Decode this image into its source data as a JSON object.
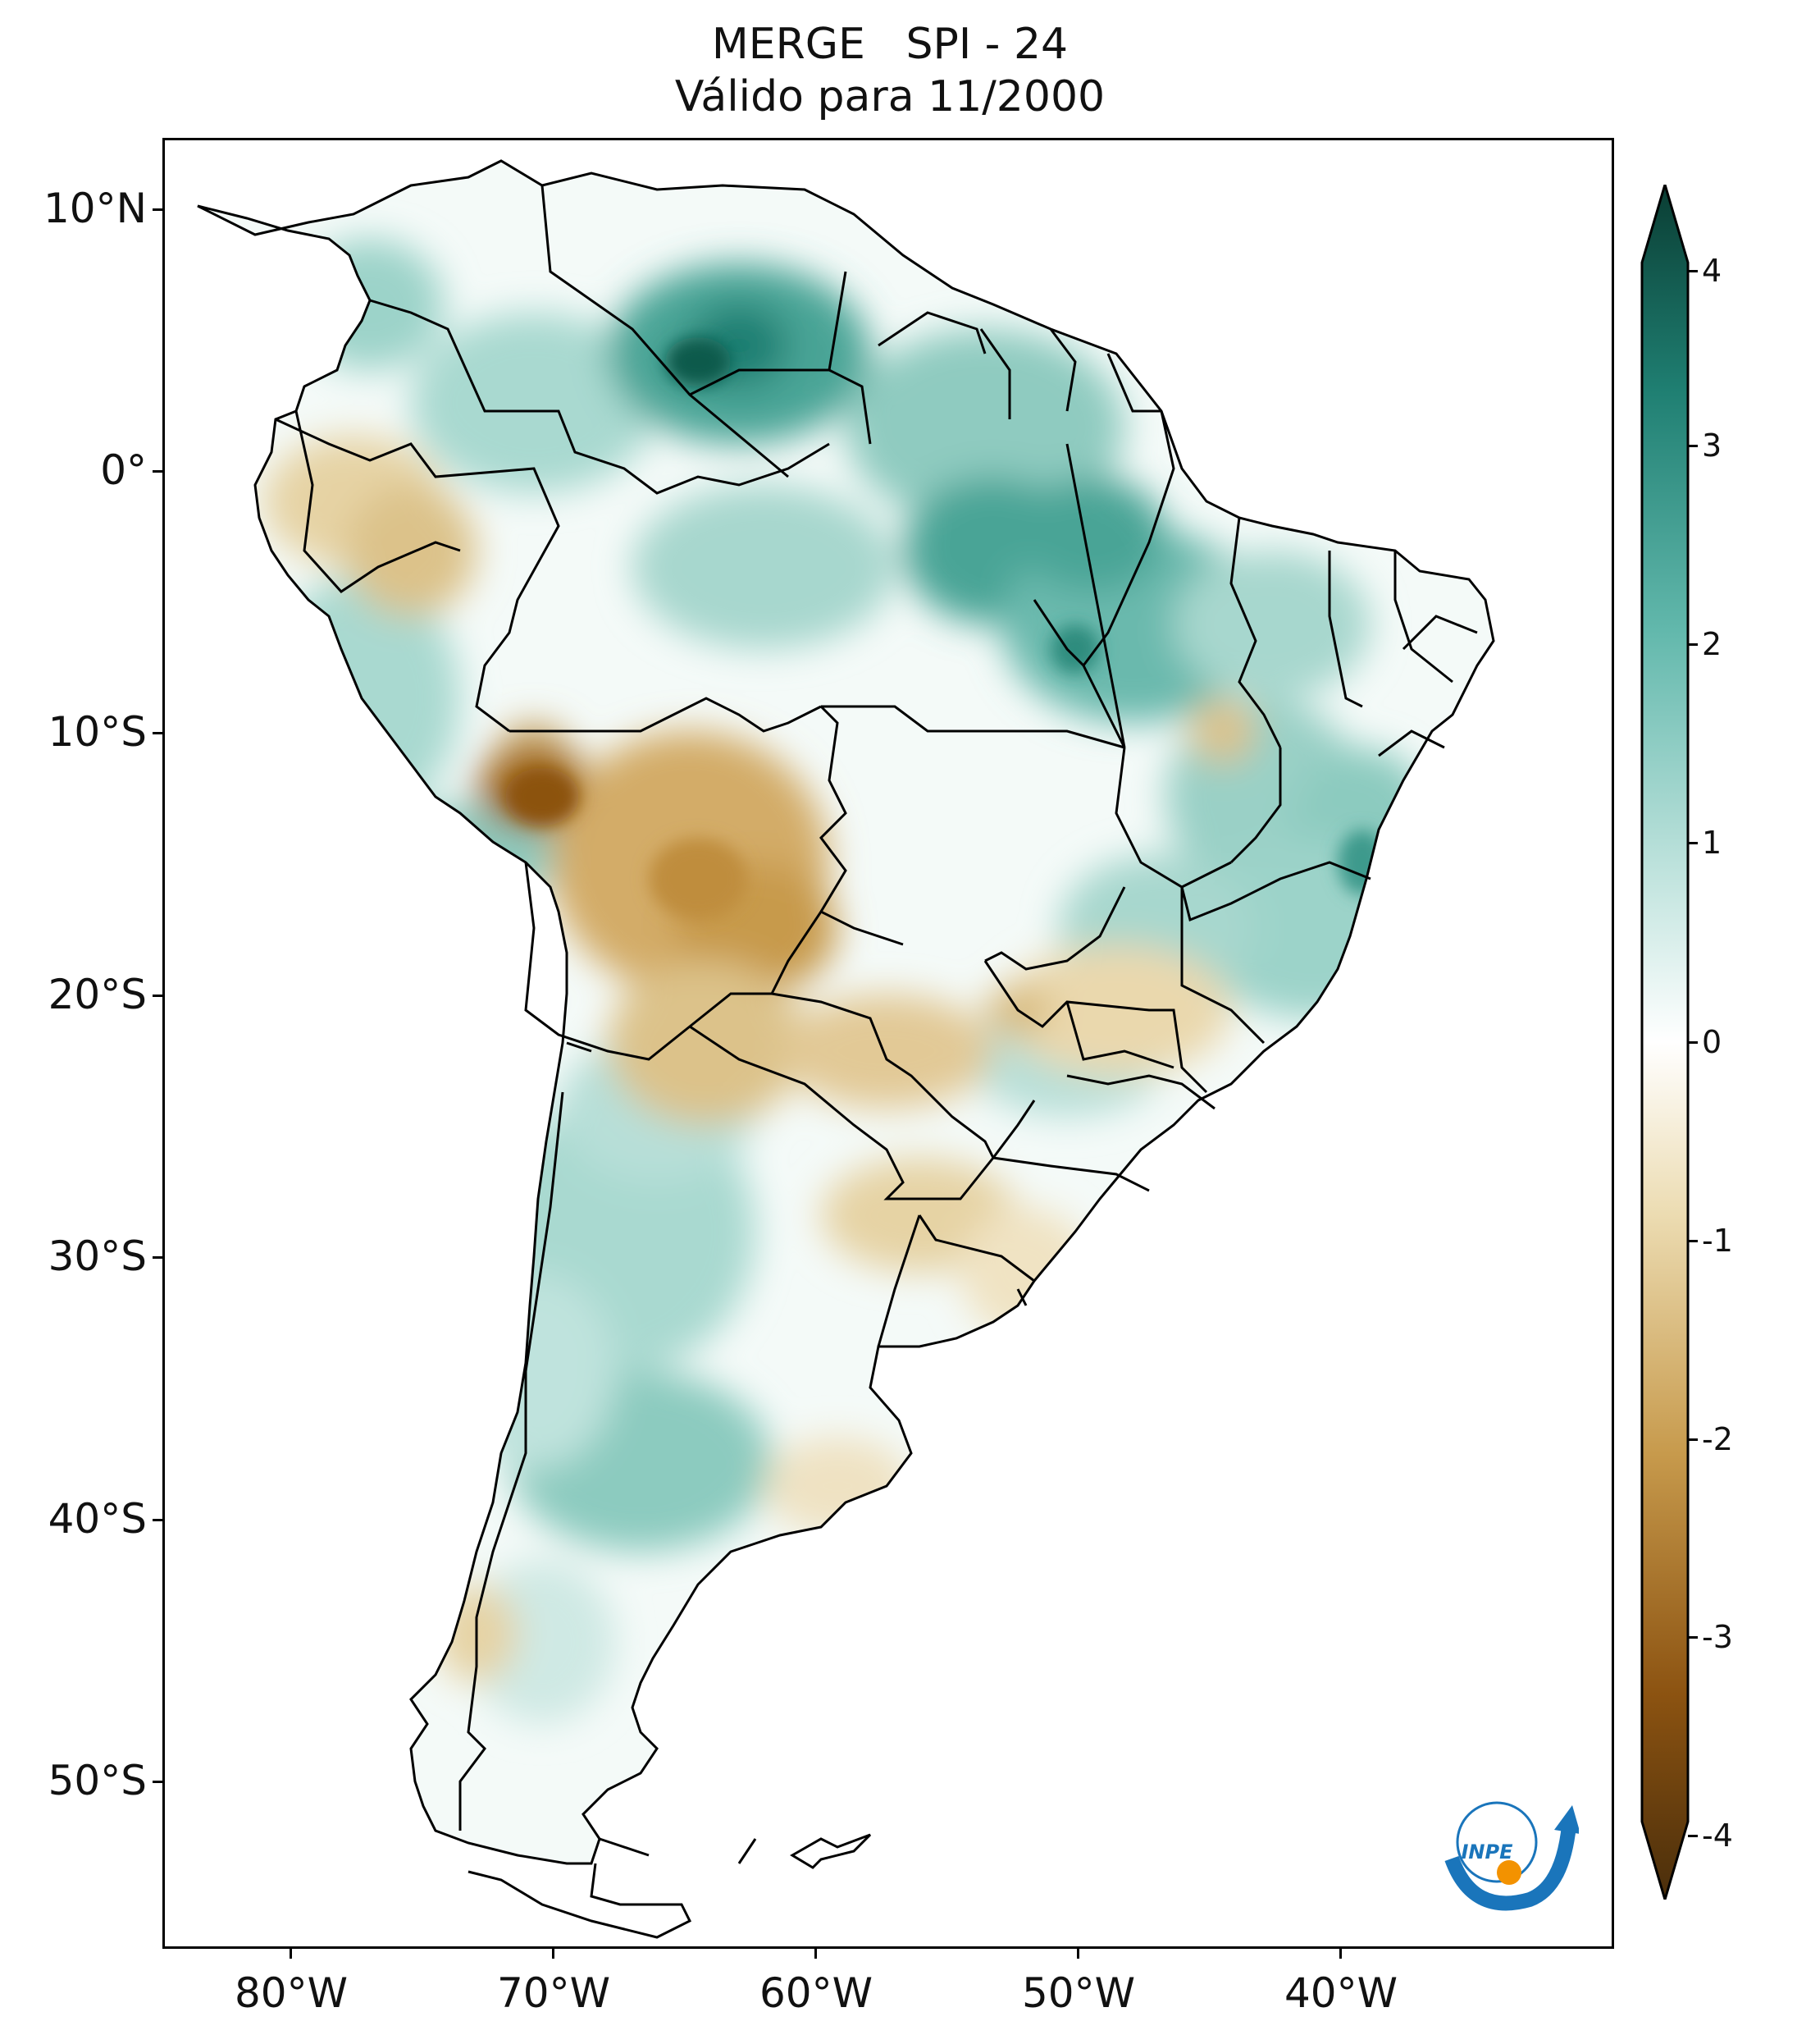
{
  "title": {
    "line1": "MERGE   SPI - 24",
    "line2": "Válido para 11/2000"
  },
  "axes": {
    "lat_labels": [
      "10°N",
      "0°",
      "10°S",
      "20°S",
      "30°S",
      "40°S",
      "50°S"
    ],
    "lon_labels": [
      "80°W",
      "70°W",
      "60°W",
      "50°W",
      "40°W"
    ]
  },
  "colorbar": {
    "ticks": [
      "4",
      "3",
      "2",
      "1",
      "0",
      "-1",
      "-2",
      "-3",
      "-4"
    ],
    "colors": {
      "max": "#0a3d33",
      "high": "#1f7f72",
      "mid_high": "#62b8ac",
      "low_pos": "#bfe3dd",
      "zero": "#ffffff",
      "low_neg": "#ecdcb2",
      "mid_low": "#c79a4c",
      "low": "#8c5311",
      "min": "#4a2e0b"
    }
  },
  "logo": {
    "text": "INPE",
    "colors": {
      "blue": "#1a75bb",
      "orange": "#f39200"
    }
  }
}
